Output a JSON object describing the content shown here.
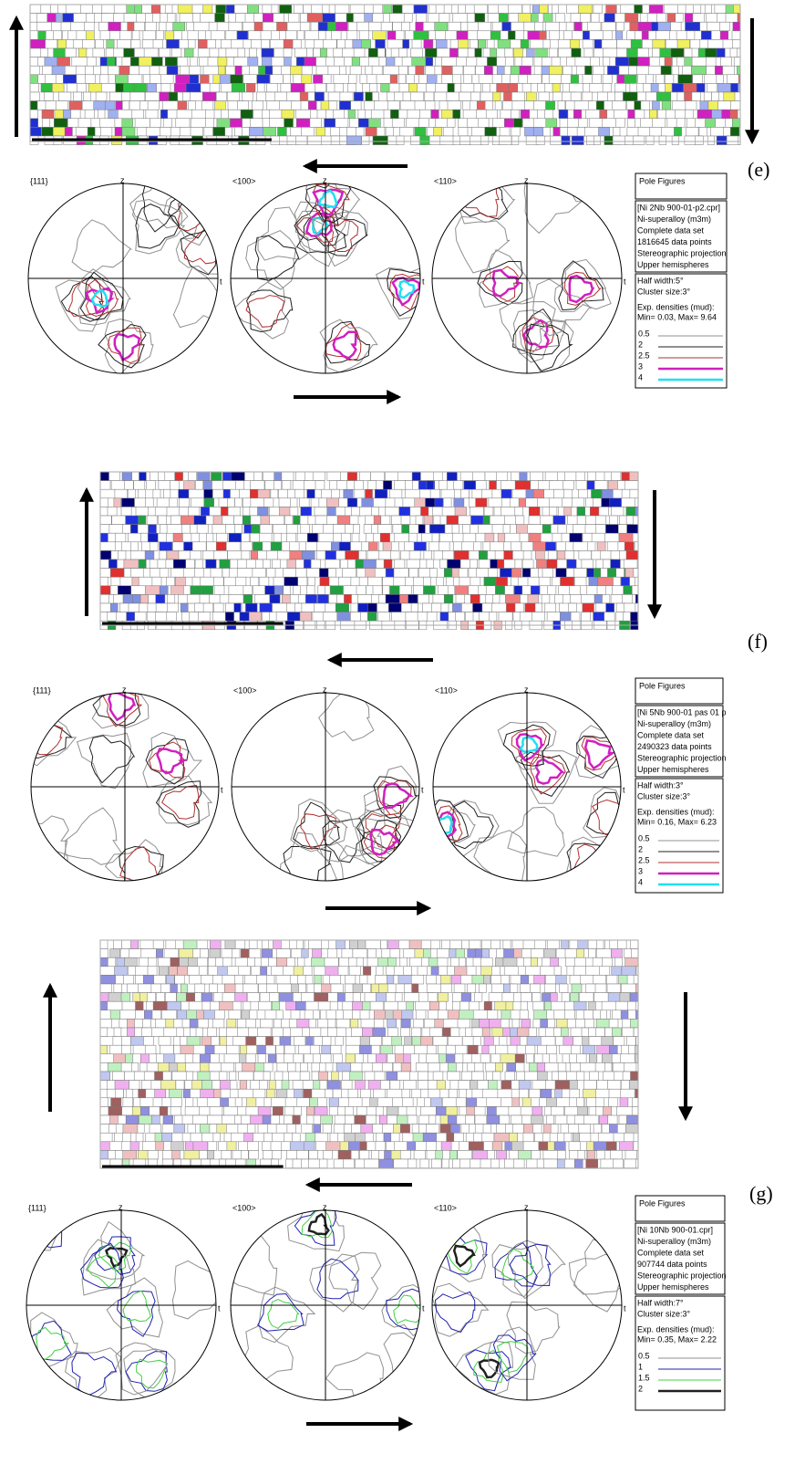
{
  "panels": [
    {
      "label": "(e)",
      "pole_figures": [
        "{111}",
        "<100>",
        "<110>"
      ],
      "axis_z": "z",
      "axis_t": "t",
      "legend": {
        "title": "Pole Figures",
        "info": [
          "[Ni 2Nb 900-01-p2.cpr]",
          "Ni-superalloy (m3m)",
          "Complete data set",
          "1816645 data points",
          "Stereographic projection",
          "Upper hemispheres"
        ],
        "settings": [
          "Half width:5°",
          "Cluster size:3°"
        ],
        "densities_title": "Exp. densities (mud):",
        "range": "Min= 0.03, Max= 9.64",
        "levels": [
          {
            "label": "0.5",
            "color": "#909090"
          },
          {
            "label": "2",
            "color": "#202020"
          },
          {
            "label": "2.5",
            "color": "#b03030"
          },
          {
            "label": "3",
            "color": "#d020c0"
          },
          {
            "label": "4",
            "color": "#20e0f0"
          }
        ]
      }
    },
    {
      "label": "(f)",
      "pole_figures": [
        "{111}",
        "<100>",
        "<110>"
      ],
      "axis_z": "z",
      "axis_t": "t",
      "legend": {
        "title": "Pole Figures",
        "info": [
          "[Ni 5Nb 900-01 pas 01 p",
          "Ni-superalloy (m3m)",
          "Complete data set",
          "2490323 data points",
          "Stereographic projection",
          "Upper hemispheres"
        ],
        "settings": [
          "Half width:3°",
          "Cluster size:3°"
        ],
        "densities_title": "Exp. densities (mud):",
        "range": "Min= 0.16, Max= 6.23",
        "levels": [
          {
            "label": "0.5",
            "color": "#909090"
          },
          {
            "label": "2",
            "color": "#202020"
          },
          {
            "label": "2.5",
            "color": "#b03030"
          },
          {
            "label": "3",
            "color": "#d020c0"
          },
          {
            "label": "4",
            "color": "#20e0f0"
          }
        ]
      }
    },
    {
      "label": "(g)",
      "pole_figures": [
        "{111}",
        "<100>",
        "<110>"
      ],
      "axis_z": "z",
      "axis_t": "t",
      "legend": {
        "title": "Pole Figures",
        "info": [
          "[Ni 10Nb 900-01.cpr]",
          "Ni-superalloy (m3m)",
          "Complete data set",
          "907744 data points",
          "Stereographic projection",
          "Upper hemispheres"
        ],
        "settings": [
          "Half width:7°",
          "Cluster size:3°"
        ],
        "densities_title": "Exp. densities (mud):",
        "range": "Min= 0.35, Max= 2.22",
        "levels": [
          {
            "label": "0.5",
            "color": "#909090"
          },
          {
            "label": "1",
            "color": "#2020b0"
          },
          {
            "label": "1.5",
            "color": "#40d040"
          },
          {
            "label": "2",
            "color": "#202020"
          }
        ]
      }
    }
  ]
}
